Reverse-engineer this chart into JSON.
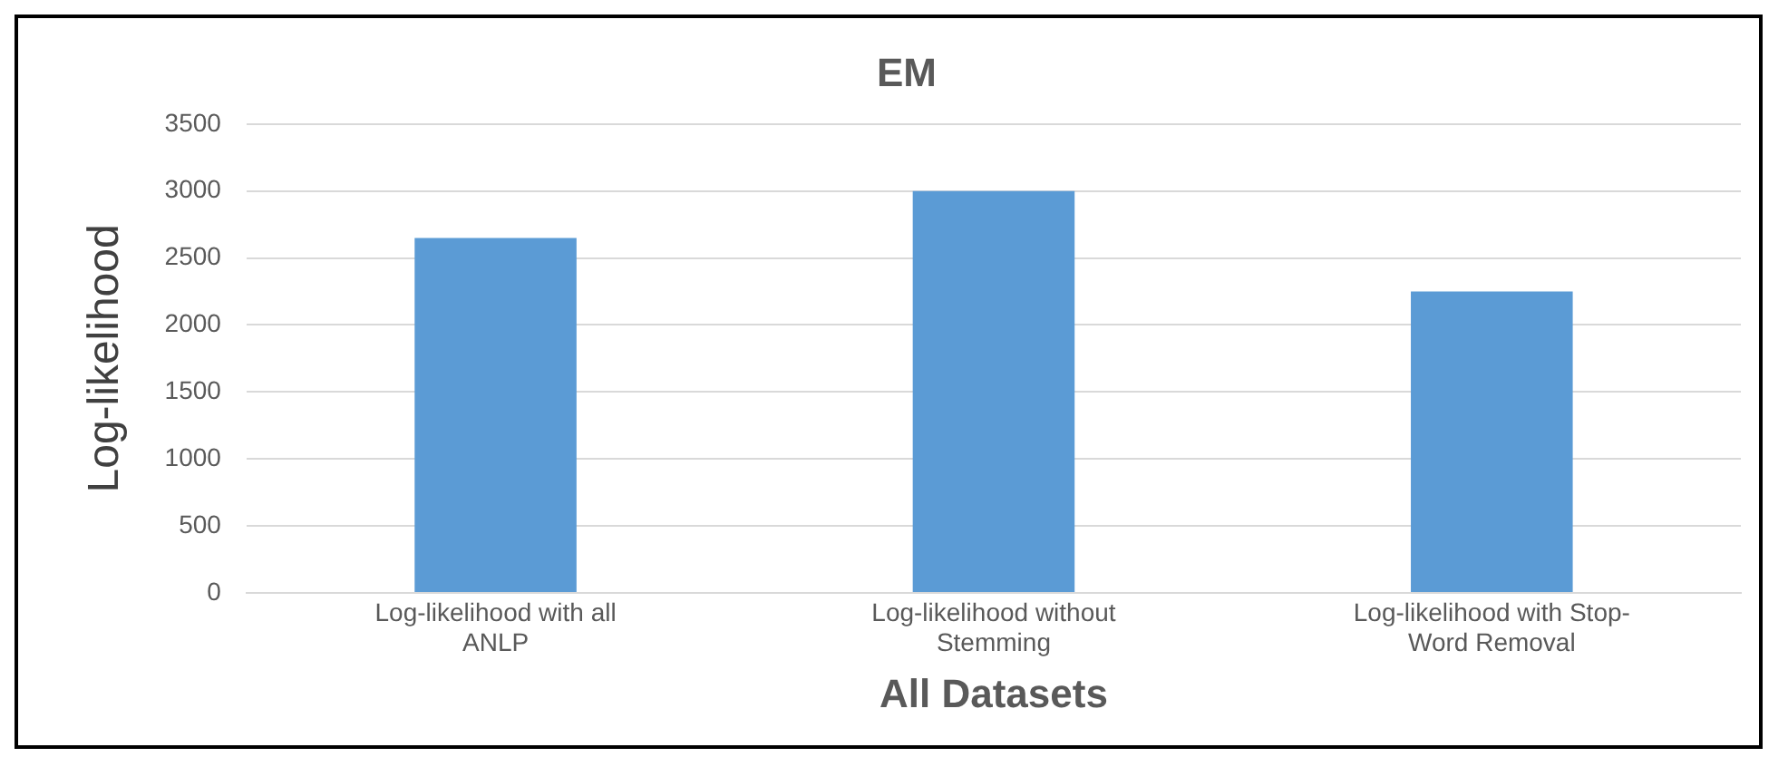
{
  "chart_data": {
    "type": "bar",
    "title": "EM",
    "xlabel": "All Datasets",
    "ylabel": "Log-likelihood",
    "categories": [
      "Log-likelihood with all ANLP",
      "Log-likelihood without Stemming",
      "Log-likelihood with Stop-Word Removal"
    ],
    "values": [
      2650,
      3000,
      2250
    ],
    "color": "#5b9bd5",
    "ylim": [
      0,
      3500
    ],
    "yticks": [
      0,
      500,
      1000,
      1500,
      2000,
      2500,
      3000,
      3500
    ],
    "grid": "y",
    "legend": false
  }
}
